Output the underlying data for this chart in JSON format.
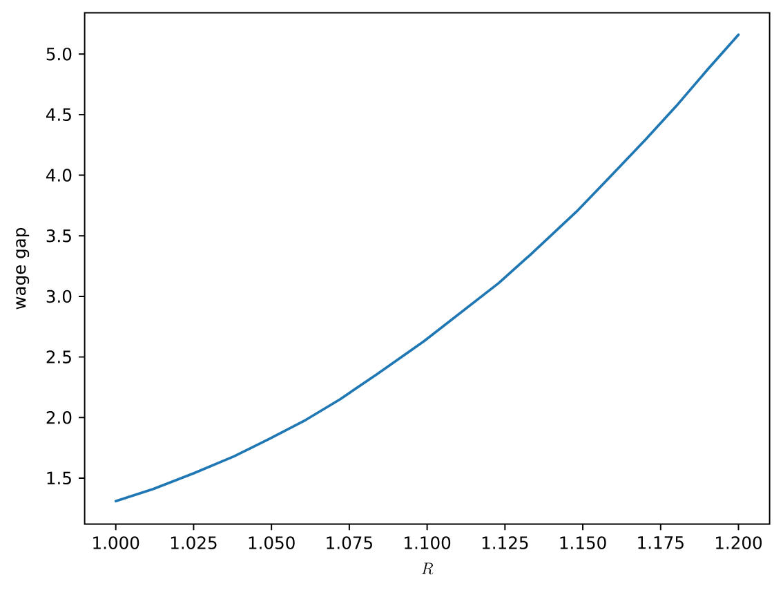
{
  "chart_data": {
    "type": "line",
    "xlabel": "R",
    "ylabel": "wage gap",
    "x": [
      1.0,
      1.012,
      1.025,
      1.038,
      1.049,
      1.061,
      1.072,
      1.084,
      1.099,
      1.111,
      1.123,
      1.133,
      1.148,
      1.16,
      1.17,
      1.18,
      1.19,
      1.2
    ],
    "series": [
      {
        "color": "#1f77b4",
        "values": [
          1.31,
          1.41,
          1.54,
          1.68,
          1.82,
          1.98,
          2.15,
          2.36,
          2.63,
          2.87,
          3.11,
          3.34,
          3.7,
          4.02,
          4.29,
          4.57,
          4.87,
          5.16
        ]
      }
    ],
    "xlim": [
      0.99,
      1.21
    ],
    "ylim": [
      1.12,
      5.34
    ],
    "xticks": [
      {
        "value": 1.0,
        "label": "1.000"
      },
      1.025,
      {
        "value": 1.05,
        "label": "1.050"
      },
      1.075,
      {
        "value": 1.1,
        "label": "1.100"
      },
      1.125,
      {
        "value": 1.15,
        "label": "1.150"
      },
      1.175,
      {
        "value": 1.2,
        "label": "1.200"
      }
    ],
    "yticks": [
      1.5,
      {
        "value": 2,
        "label": "2.0"
      },
      2.5,
      {
        "value": 3,
        "label": "3.0"
      },
      3.5,
      {
        "value": 4,
        "label": "4.0"
      },
      4.5,
      {
        "value": 5,
        "label": "5.0"
      }
    ]
  }
}
